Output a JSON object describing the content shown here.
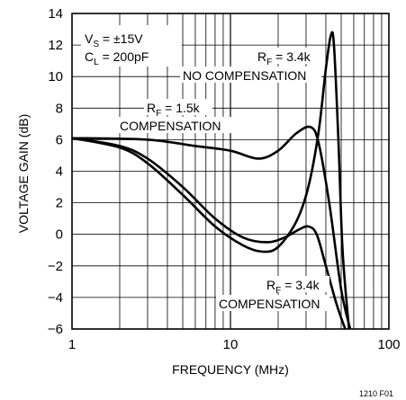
{
  "chart_data": {
    "type": "line",
    "xlabel": "FREQUENCY (MHz)",
    "ylabel": "VOLTAGE GAIN (dB)",
    "x_scale": "log",
    "xlim": [
      1,
      100
    ],
    "ylim": [
      -6,
      14
    ],
    "x_ticks": [
      "1",
      "10",
      "100"
    ],
    "y_ticks": [
      "14",
      "12",
      "10",
      "8",
      "6",
      "4",
      "2",
      "0",
      "−2",
      "−4",
      "−6"
    ],
    "grid": true,
    "conditions": {
      "vs_main": "V",
      "vs_sub": "S",
      "vs_rest": " = ±15V",
      "cl_main": "C",
      "cl_sub": "L",
      "cl_rest": " = 200pF"
    },
    "annotations": [
      {
        "rf_main": "R",
        "rf_sub": "F",
        "rf_rest": " = 3.4k",
        "line2": "NO COMPENSATION"
      },
      {
        "rf_main": "R",
        "rf_sub": "F",
        "rf_rest": " = 1.5k",
        "line2": "COMPENSATION"
      },
      {
        "rf_main": "R",
        "rf_sub": "F",
        "rf_rest": " = 3.4k",
        "line2": "COMPENSATION"
      }
    ],
    "figure_id": "1210 F01",
    "series": [
      {
        "points": [
          [
            1,
            6.1
          ],
          [
            3,
            6.0
          ],
          [
            6,
            5.6
          ],
          [
            10,
            5.3
          ],
          [
            15,
            4.8
          ],
          [
            20,
            5.3
          ],
          [
            26,
            6.4
          ],
          [
            32,
            6.8
          ],
          [
            36,
            5.8
          ],
          [
            42,
            2.0
          ],
          [
            50,
            -3.5
          ],
          [
            57,
            -6.0
          ]
        ]
      },
      {
        "points": [
          [
            1,
            6.1
          ],
          [
            2,
            5.6
          ],
          [
            3,
            4.8
          ],
          [
            5,
            3.0
          ],
          [
            8,
            1.0
          ],
          [
            12,
            -0.2
          ],
          [
            17,
            -0.5
          ],
          [
            22,
            -0.2
          ],
          [
            27,
            0.3
          ],
          [
            31,
            0.5
          ],
          [
            35,
            0.0
          ],
          [
            40,
            -2.0
          ],
          [
            47,
            -4.5
          ],
          [
            53,
            -6.0
          ]
        ]
      },
      {
        "points": [
          [
            1,
            6.1
          ],
          [
            2,
            5.5
          ],
          [
            3,
            4.5
          ],
          [
            5,
            2.5
          ],
          [
            8,
            0.5
          ],
          [
            12,
            -0.7
          ],
          [
            16,
            -1.1
          ],
          [
            20,
            -0.8
          ],
          [
            26,
            0.8
          ],
          [
            31,
            3.0
          ],
          [
            36,
            6.5
          ],
          [
            40,
            10.5
          ],
          [
            43,
            12.6
          ],
          [
            45,
            12.0
          ],
          [
            48,
            6.0
          ],
          [
            51,
            -1.0
          ],
          [
            56,
            -6.0
          ]
        ]
      }
    ]
  }
}
